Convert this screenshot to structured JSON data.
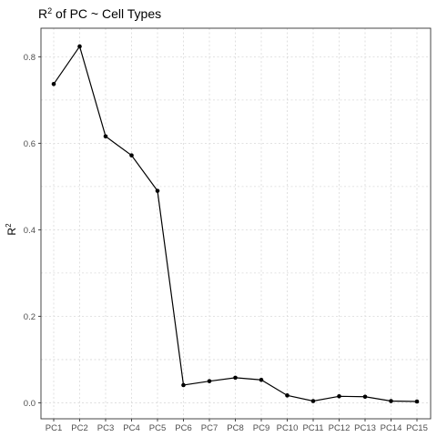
{
  "chart_data": {
    "type": "line",
    "title": {
      "prefix": "R",
      "sup": "2",
      "suffix": " of PC ~  Cell Types"
    },
    "ylabel": {
      "base": "R",
      "sup": "2"
    },
    "xlabel": "",
    "categories": [
      "PC1",
      "PC2",
      "PC3",
      "PC4",
      "PC5",
      "PC6",
      "PC7",
      "PC8",
      "PC9",
      "PC10",
      "PC11",
      "PC12",
      "PC13",
      "PC14",
      "PC15"
    ],
    "values": [
      0.737,
      0.824,
      0.616,
      0.572,
      0.49,
      0.041,
      0.05,
      0.058,
      0.053,
      0.017,
      0.004,
      0.015,
      0.014,
      0.004,
      0.003
    ],
    "yticks": [
      0.0,
      0.2,
      0.4,
      0.6,
      0.8
    ],
    "ytick_labels": [
      "0.0",
      "0.2",
      "0.4",
      "0.6",
      "0.8"
    ],
    "ylim": [
      -0.037,
      0.866
    ],
    "grid": true,
    "legend": "none",
    "colors": {
      "line": "#000000",
      "point": "#000000",
      "grid": "#d9d9d9",
      "border": "#333333"
    }
  }
}
